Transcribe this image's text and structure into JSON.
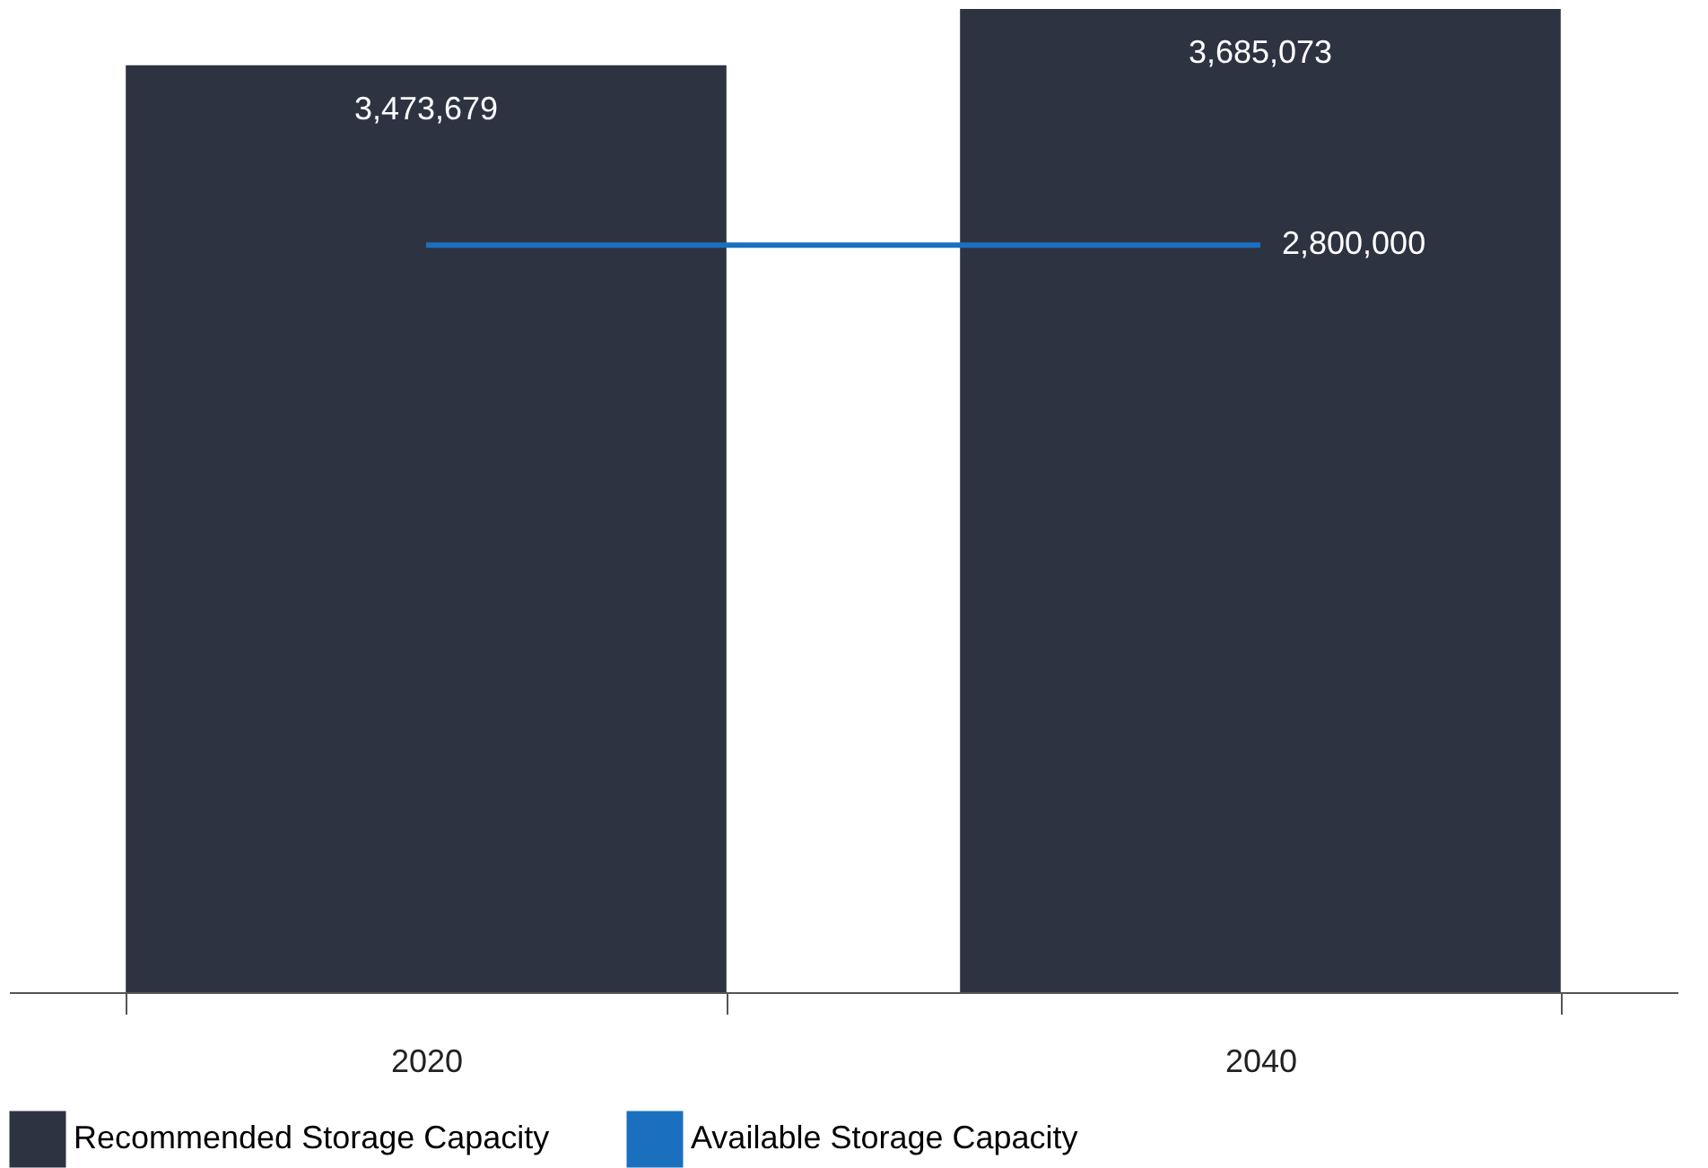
{
  "chart_data": {
    "type": "bar",
    "categories": [
      "2020",
      "2040"
    ],
    "legend": "bottom",
    "series": [
      {
        "name": "Recommended Storage Capacity",
        "color": "#2e3342",
        "values": [
          3473679,
          3685073
        ],
        "value_labels": [
          "3,473,679",
          "3,685,073"
        ]
      },
      {
        "name": "Available Storage Capacity",
        "type": "line",
        "color": "#1a70bf",
        "values": [
          2800000,
          2800000
        ],
        "value_labels": [
          null,
          "2,800,000"
        ]
      }
    ]
  }
}
